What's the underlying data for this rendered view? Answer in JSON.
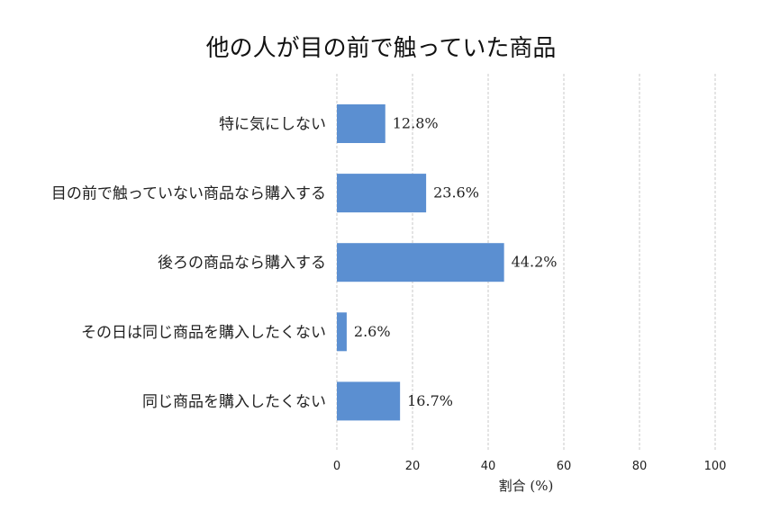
{
  "chart_data": {
    "type": "bar",
    "orientation": "horizontal",
    "title": "他の人が目の前で触っていた商品",
    "xlabel": "割合 (%)",
    "ylabel": "",
    "xlim": [
      0,
      100
    ],
    "xticks": [
      0,
      20,
      40,
      60,
      80,
      100
    ],
    "grid": "vertical dashed",
    "categories": [
      "特に気にしない",
      "目の前で触っていない商品なら購入する",
      "後ろの商品なら購入する",
      "その日は同じ商品を購入したくない",
      "同じ商品を購入したくない"
    ],
    "values": [
      12.8,
      23.6,
      44.2,
      2.6,
      16.7
    ],
    "value_labels": [
      "12.8%",
      "23.6%",
      "44.2%",
      "2.6%",
      "16.7%"
    ],
    "bar_color": "#5b8fd1",
    "grid_color": "#c8c8c8"
  }
}
